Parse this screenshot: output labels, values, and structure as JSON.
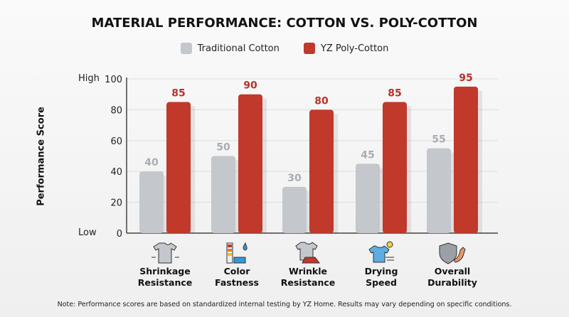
{
  "chart_data": {
    "type": "bar",
    "title": "MATERIAL PERFORMANCE: COTTON VS. POLY-COTTON",
    "ylabel": "Performance Score",
    "ylim": [
      0,
      100
    ],
    "yticks": [
      0,
      20,
      40,
      60,
      80,
      100
    ],
    "y_side_labels": {
      "high": "High",
      "low": "Low"
    },
    "grid": true,
    "legend_position": "top",
    "categories": [
      "Shrinkage Resistance",
      "Color Fastness",
      "Wrinkle Resistance",
      "Drying Speed",
      "Overall Durability"
    ],
    "category_lines": [
      [
        "Shrinkage",
        "Resistance"
      ],
      [
        "Color",
        "Fastness"
      ],
      [
        "Wrinkle",
        "Resistance"
      ],
      [
        "Drying",
        "Speed"
      ],
      [
        "Overall",
        "Durability"
      ]
    ],
    "category_icons": [
      "t-shirt-shrink-icon",
      "color-swatch-icon",
      "shirt-iron-icon",
      "shirt-drying-icon",
      "shield-muscle-icon"
    ],
    "series": [
      {
        "name": "Traditional Cotton",
        "color": "#c4c7cb",
        "label_color": "#a9adb2",
        "values": [
          40,
          50,
          30,
          45,
          55
        ]
      },
      {
        "name": "YZ Poly-Cotton",
        "color": "#c0392b",
        "label_color": "#b8322a",
        "values": [
          85,
          90,
          80,
          85,
          95
        ]
      }
    ]
  },
  "note": "Note: Performance scores are based on standardized internal testing by YZ Home. Results may vary depending on specific conditions."
}
